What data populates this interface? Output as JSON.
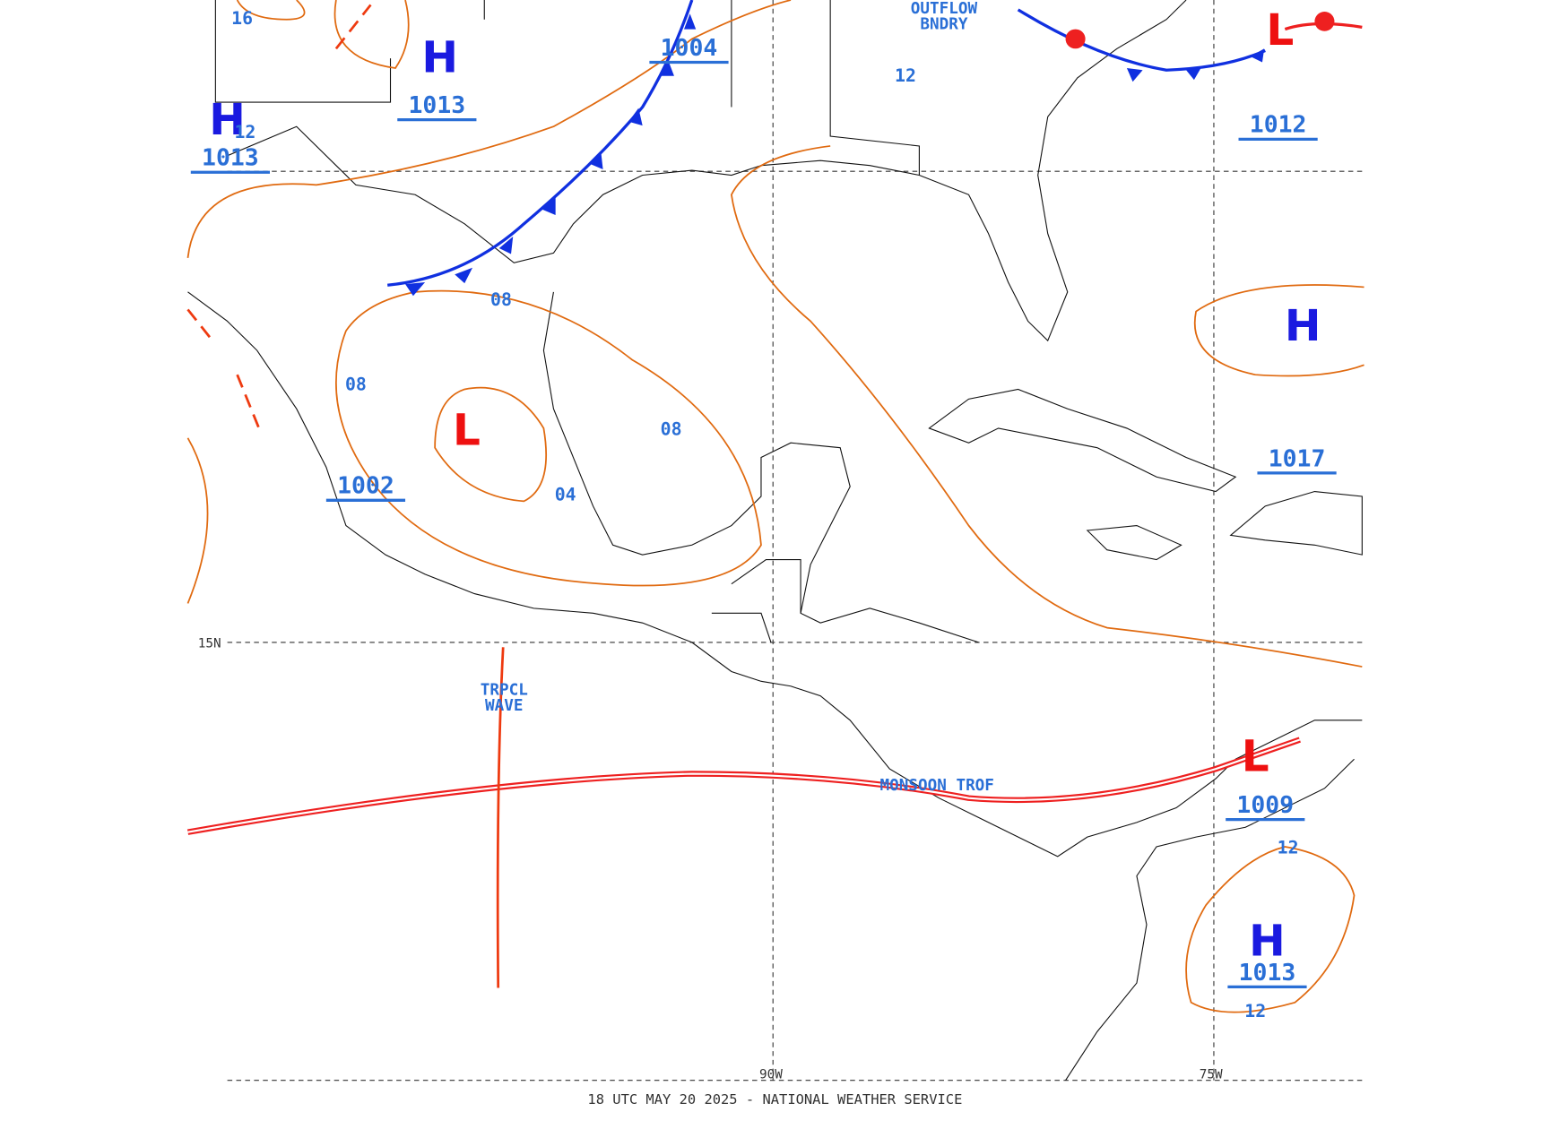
{
  "pressure_systems": [
    {
      "symbol": "H",
      "pressure": "1013"
    },
    {
      "symbol": "H",
      "pressure": "1013"
    },
    {
      "pressure": "1004"
    },
    {
      "pressure": "1012"
    },
    {
      "symbol": "H"
    },
    {
      "pressure": "1017"
    },
    {
      "symbol": "L",
      "pressure": "1002"
    },
    {
      "symbol": "L",
      "pressure": "1009"
    },
    {
      "symbol": "H",
      "pressure": "1013"
    },
    {
      "symbol": "L"
    }
  ],
  "isobar_labels": [
    "08",
    "08",
    "08",
    "04",
    "12",
    "16",
    "12",
    "12",
    "12"
  ],
  "features": {
    "outflow_boundary": [
      "OUTFLOW",
      "BNDRY"
    ],
    "tropical_wave": [
      "TRPCL",
      "WAVE"
    ],
    "monsoon_trough": "MONSOON TROF"
  },
  "grid_labels": {
    "lat": [
      "15N"
    ],
    "lon": [
      "90W",
      "75W"
    ]
  },
  "footer": "18 UTC MAY 20 2025 - NATIONAL WEATHER SERVICE"
}
